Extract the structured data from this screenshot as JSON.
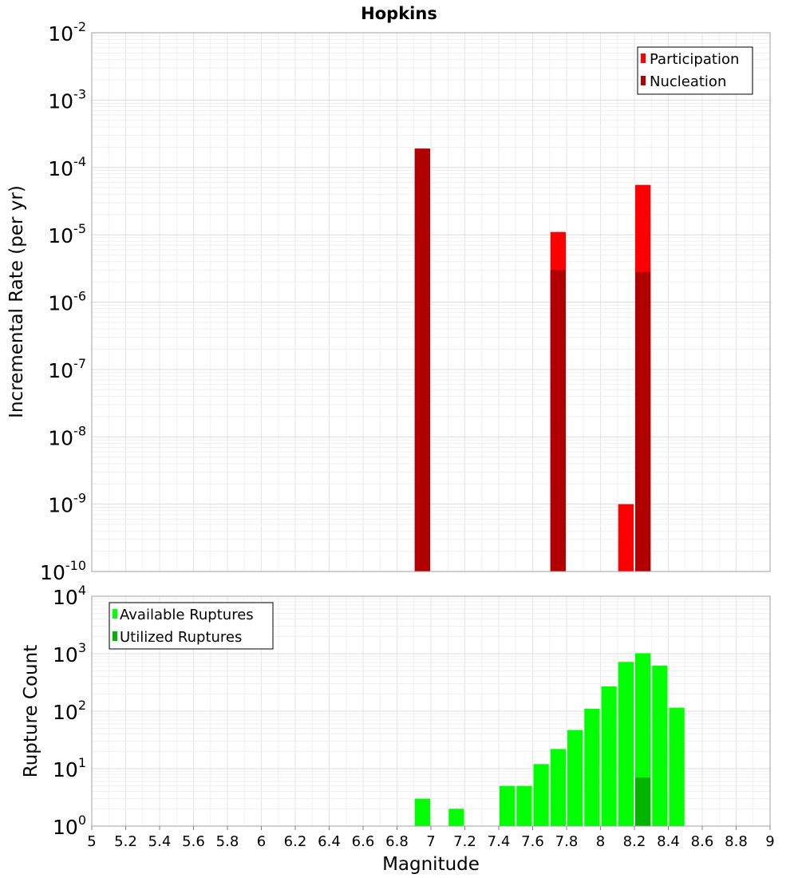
{
  "chart_data": [
    {
      "type": "bar",
      "title": "Hopkins",
      "xlabel": "",
      "ylabel": "Incremental Rate (per yr)",
      "yscale": "log",
      "ylim_exponents": [
        -10,
        -2
      ],
      "xlim": [
        5,
        9
      ],
      "grid": true,
      "legend_position": "top-right",
      "series": [
        {
          "name": "Participation",
          "color": "#ff0000",
          "points": [
            {
              "x": 6.95,
              "y": 0.00019
            },
            {
              "x": 7.75,
              "y": 1.1e-05
            },
            {
              "x": 8.15,
              "y": 1e-09
            },
            {
              "x": 8.25,
              "y": 5.5e-05
            }
          ]
        },
        {
          "name": "Nucleation",
          "color": "#b00000",
          "points": [
            {
              "x": 6.95,
              "y": 0.00019
            },
            {
              "x": 7.75,
              "y": 3e-06
            },
            {
              "x": 8.25,
              "y": 2.8e-06
            }
          ]
        }
      ]
    },
    {
      "type": "bar",
      "xlabel": "Magnitude",
      "ylabel": "Rupture Count",
      "yscale": "log",
      "ylim_exponents": [
        0,
        4
      ],
      "xlim": [
        5,
        9
      ],
      "xticks": [
        "5",
        "5.2",
        "5.4",
        "5.6",
        "5.8",
        "6",
        "6.2",
        "6.4",
        "6.6",
        "6.8",
        "7",
        "7.2",
        "7.4",
        "7.6",
        "7.8",
        "8",
        "8.2",
        "8.4",
        "8.6",
        "8.8",
        "9"
      ],
      "grid": true,
      "legend_position": "top-left",
      "series": [
        {
          "name": "Available Ruptures",
          "color": "#00ff00",
          "points": [
            {
              "x": 6.95,
              "y": 3
            },
            {
              "x": 7.15,
              "y": 2
            },
            {
              "x": 7.25,
              "y": 1
            },
            {
              "x": 7.35,
              "y": 1
            },
            {
              "x": 7.45,
              "y": 5
            },
            {
              "x": 7.55,
              "y": 5
            },
            {
              "x": 7.65,
              "y": 12
            },
            {
              "x": 7.75,
              "y": 22
            },
            {
              "x": 7.85,
              "y": 47
            },
            {
              "x": 7.95,
              "y": 110
            },
            {
              "x": 8.05,
              "y": 270
            },
            {
              "x": 8.15,
              "y": 720
            },
            {
              "x": 8.25,
              "y": 1020
            },
            {
              "x": 8.35,
              "y": 620
            },
            {
              "x": 8.45,
              "y": 115
            }
          ]
        },
        {
          "name": "Utilized Ruptures",
          "color": "#00b400",
          "points": [
            {
              "x": 6.95,
              "y": 1
            },
            {
              "x": 7.75,
              "y": 1
            },
            {
              "x": 8.15,
              "y": 1
            },
            {
              "x": 8.25,
              "y": 7
            }
          ]
        }
      ]
    }
  ]
}
